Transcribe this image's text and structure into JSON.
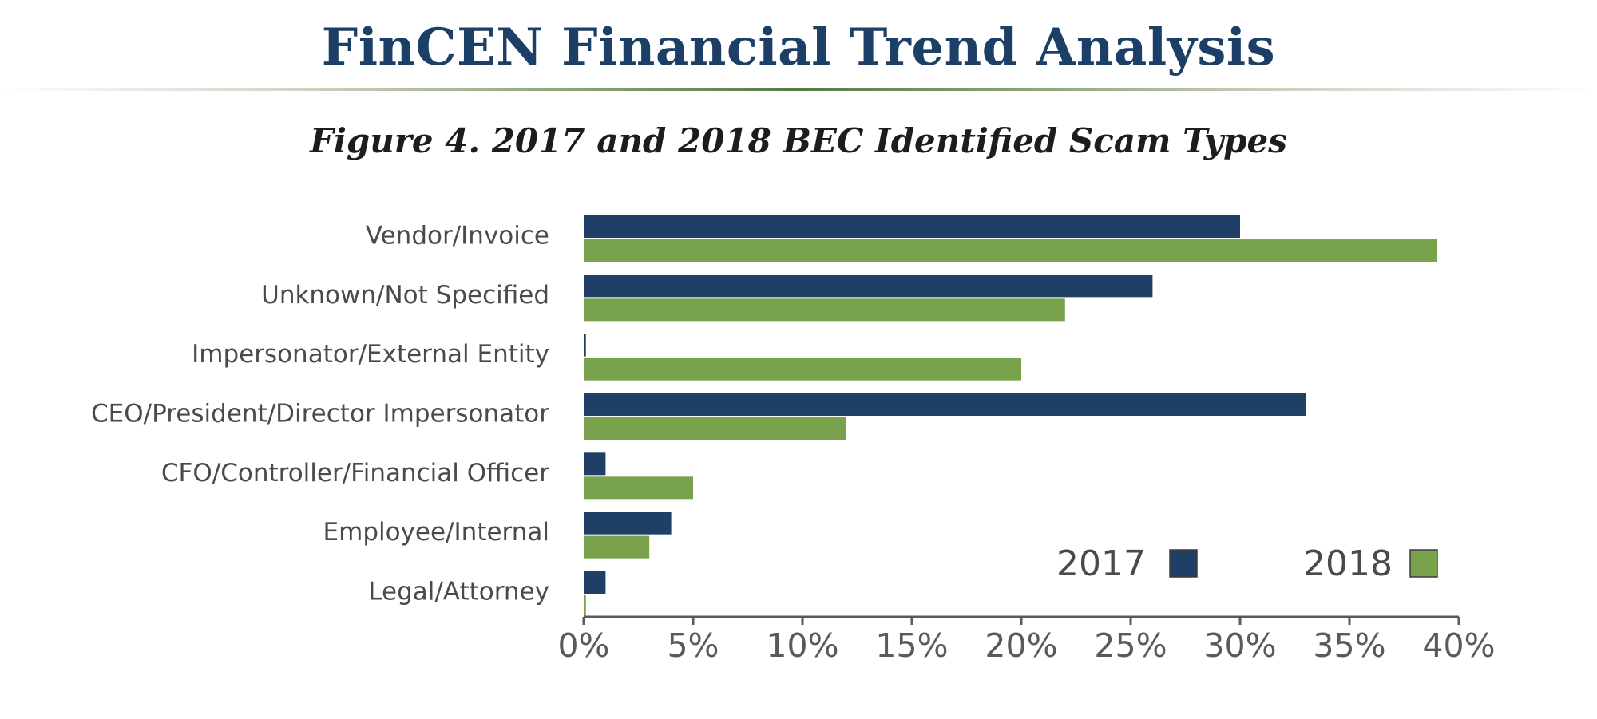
{
  "header": {
    "title": "FinCEN Financial Trend Analysis",
    "figure_caption": "Figure 4. 2017 and 2018 BEC Identified Scam Types"
  },
  "colors": {
    "title": "#1b3f66",
    "series_2017": "#1f3f66",
    "series_2018": "#78a24c",
    "axis": "#5a5a5a",
    "label": "#4a4a4a"
  },
  "chart_data": {
    "type": "bar",
    "orientation": "horizontal",
    "title": "Figure 4. 2017 and 2018 BEC Identified Scam Types",
    "xlabel": "",
    "ylabel": "",
    "xlim": [
      0,
      40
    ],
    "x_ticks": [
      "0%",
      "5%",
      "10%",
      "15%",
      "20%",
      "25%",
      "30%",
      "35%",
      "40%"
    ],
    "grid": false,
    "legend_position": "bottom-right",
    "categories": [
      "Vendor/Invoice",
      "Unknown/Not Specified",
      "Impersonator/External Entity",
      "CEO/President/Director Impersonator",
      "CFO/Controller/Financial Officer",
      "Employee/Internal",
      "Legal/Attorney"
    ],
    "series": [
      {
        "name": "2017",
        "color": "#1f3f66",
        "values": [
          30,
          26,
          0.1,
          33,
          1,
          4,
          1
        ]
      },
      {
        "name": "2018",
        "color": "#78a24c",
        "values": [
          39,
          22,
          20,
          12,
          5,
          3,
          0.1
        ]
      }
    ]
  }
}
